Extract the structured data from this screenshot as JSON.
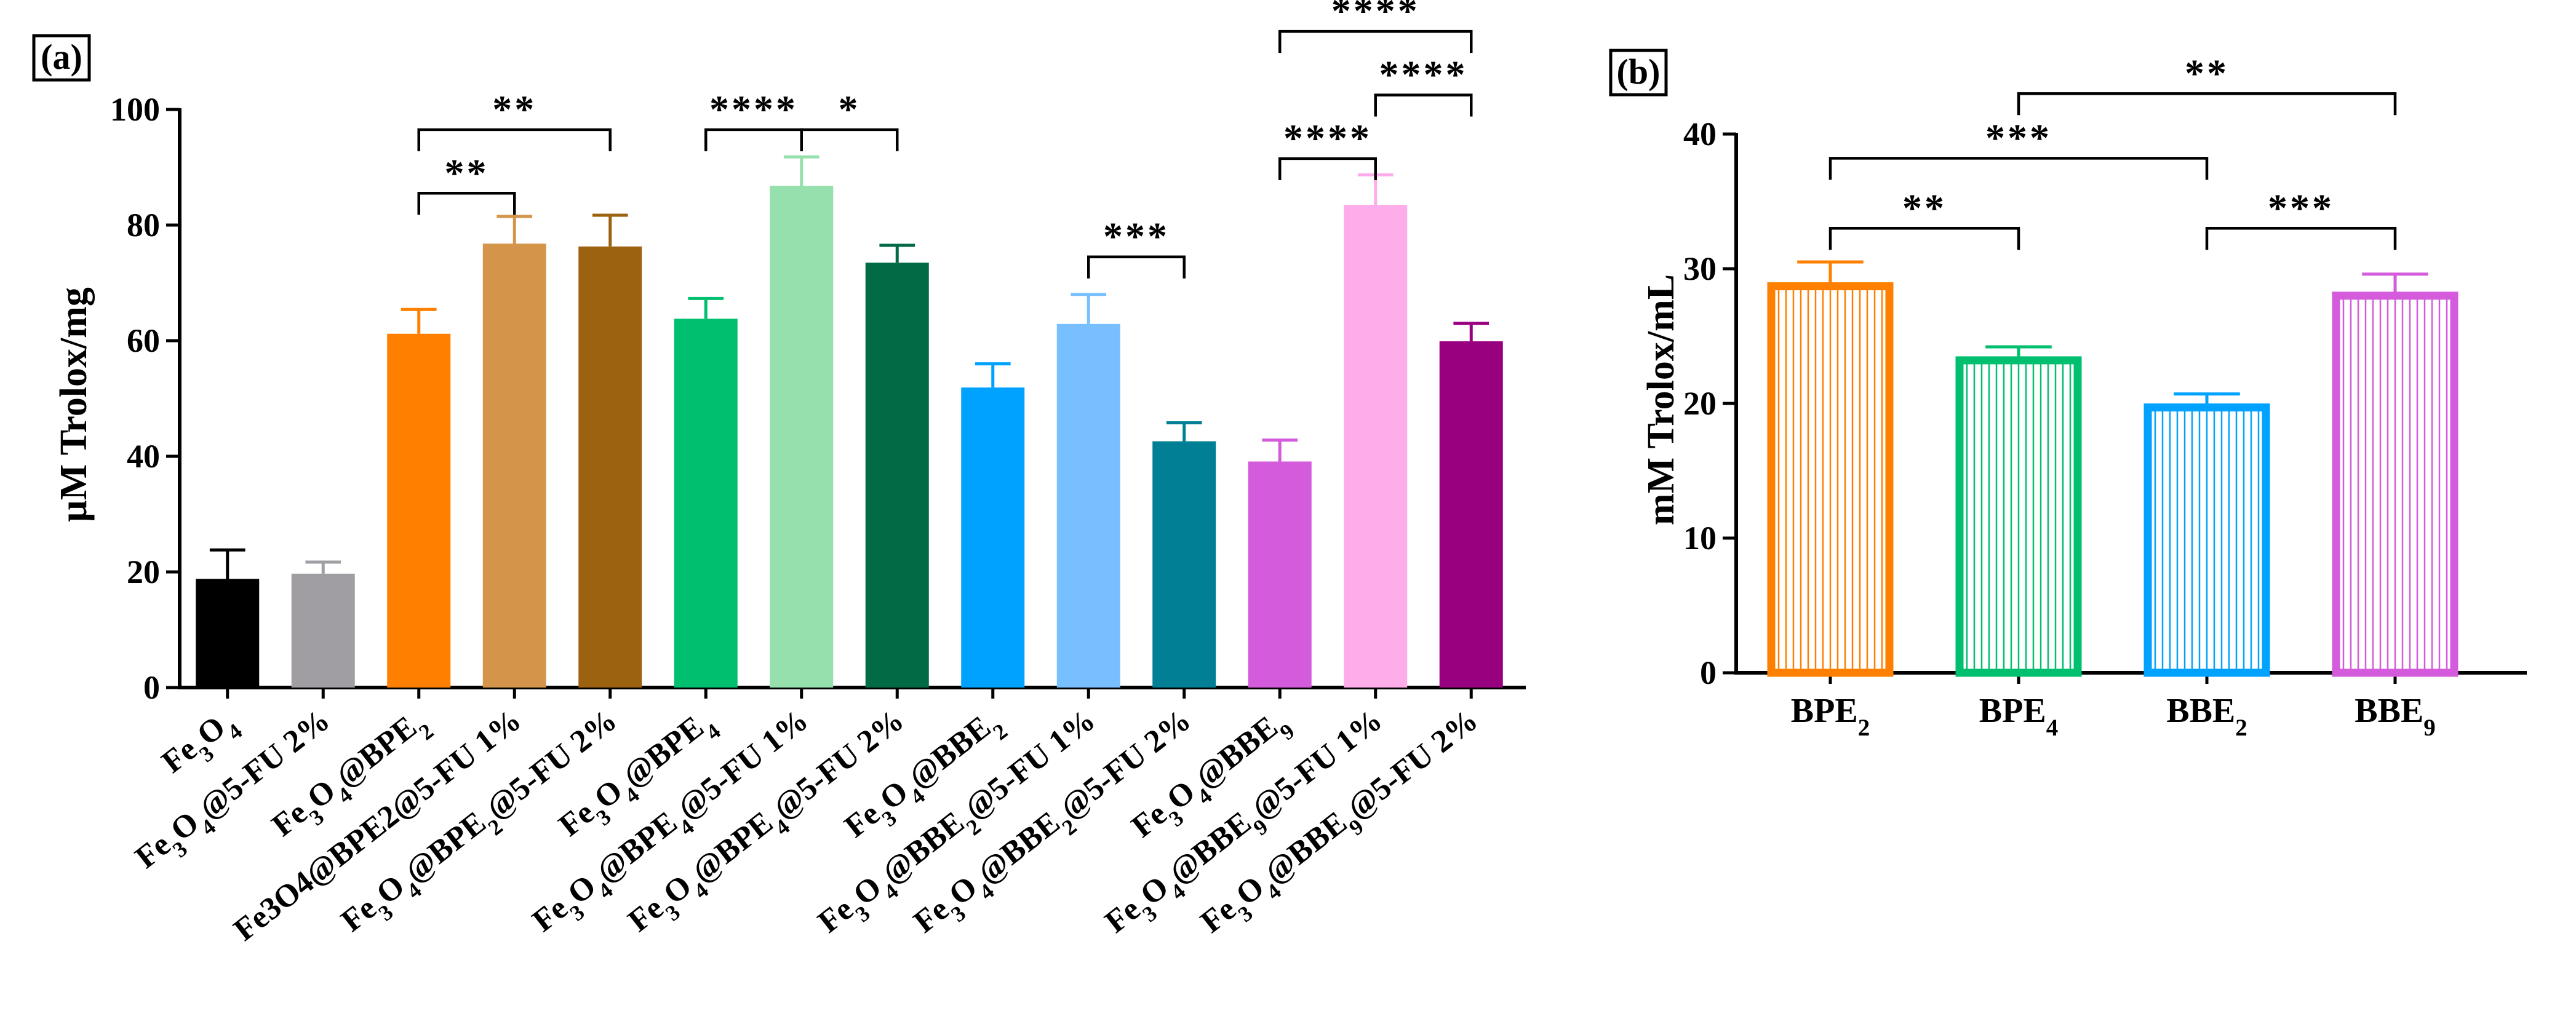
{
  "colors": {
    "fe3o4": "#000000",
    "grey": "#a09ea3",
    "orange": "#ff8000",
    "tan": "#d4954b",
    "brown": "#9c6210",
    "green": "#00bf6f",
    "lightgreen": "#96e0ad",
    "darkgreen": "#006b44",
    "blue": "#00a2ff",
    "lightblue": "#78bfff",
    "teal": "#007f95",
    "magenta": "#d45bdb",
    "pink": "#ffadea",
    "purple": "#98007f"
  },
  "chart_data": [
    {
      "panel": "(a)",
      "type": "bar",
      "ylabel": "µM Trolox/mg",
      "xlabel": "",
      "ylim": [
        0,
        100
      ],
      "yticks": [
        "0",
        "20",
        "40",
        "60",
        "80",
        "100"
      ],
      "yticks_values": [
        0,
        20,
        40,
        60,
        80,
        100
      ],
      "categories": [
        {
          "base": "Fe",
          "parts": [
            [
              "Fe",
              ""
            ],
            [
              "3",
              "sub"
            ],
            [
              "O",
              ""
            ],
            [
              "4",
              "sub"
            ]
          ]
        },
        {
          "parts": [
            [
              "Fe",
              ""
            ],
            [
              "3",
              "sub"
            ],
            [
              "O",
              ""
            ],
            [
              "4",
              "sub"
            ],
            [
              "@5-FU 2%",
              ""
            ]
          ]
        },
        {
          "parts": [
            [
              "Fe",
              ""
            ],
            [
              "3",
              "sub"
            ],
            [
              "O",
              ""
            ],
            [
              "4",
              "sub"
            ],
            [
              "@BPE",
              ""
            ],
            [
              "2",
              "sub"
            ]
          ]
        },
        {
          "parts": [
            [
              "Fe3O4@BPE2@5-FU 1%",
              ""
            ]
          ]
        },
        {
          "parts": [
            [
              "Fe",
              ""
            ],
            [
              "3",
              "sub"
            ],
            [
              "O",
              ""
            ],
            [
              "4",
              "sub"
            ],
            [
              "@BPE",
              ""
            ],
            [
              "2",
              "sub"
            ],
            [
              "@5-FU 2%",
              ""
            ]
          ]
        },
        {
          "parts": [
            [
              "Fe",
              ""
            ],
            [
              "3",
              "sub"
            ],
            [
              "O",
              ""
            ],
            [
              "4",
              "sub"
            ],
            [
              "@BPE",
              ""
            ],
            [
              "4",
              "sub"
            ]
          ]
        },
        {
          "parts": [
            [
              "Fe",
              ""
            ],
            [
              "3",
              "sub"
            ],
            [
              "O",
              ""
            ],
            [
              "4",
              "sub"
            ],
            [
              "@BPE",
              ""
            ],
            [
              "4",
              "sub"
            ],
            [
              "@5-FU 1%",
              ""
            ]
          ]
        },
        {
          "parts": [
            [
              "Fe",
              ""
            ],
            [
              "3",
              "sub"
            ],
            [
              "O",
              ""
            ],
            [
              "4",
              "sub"
            ],
            [
              "@BPE",
              ""
            ],
            [
              "4",
              "sub"
            ],
            [
              "@5-FU 2%",
              ""
            ]
          ]
        },
        {
          "parts": [
            [
              "Fe",
              ""
            ],
            [
              "3",
              "sub"
            ],
            [
              "O",
              ""
            ],
            [
              "4",
              "sub"
            ],
            [
              "@BBE",
              ""
            ],
            [
              "2",
              "sub"
            ]
          ]
        },
        {
          "parts": [
            [
              "Fe",
              ""
            ],
            [
              "3",
              "sub"
            ],
            [
              "O",
              ""
            ],
            [
              "4",
              "sub"
            ],
            [
              "@BBE",
              ""
            ],
            [
              "2",
              "sub"
            ],
            [
              "@5-FU 1%",
              ""
            ]
          ]
        },
        {
          "parts": [
            [
              "Fe",
              ""
            ],
            [
              "3",
              "sub"
            ],
            [
              "O",
              ""
            ],
            [
              "4",
              "sub"
            ],
            [
              "@BBE",
              ""
            ],
            [
              "2",
              "sub"
            ],
            [
              "@5-FU 2%",
              ""
            ]
          ]
        },
        {
          "parts": [
            [
              "Fe",
              ""
            ],
            [
              "3",
              "sub"
            ],
            [
              "O",
              ""
            ],
            [
              "4",
              "sub"
            ],
            [
              "@BBE",
              ""
            ],
            [
              "9",
              "sub"
            ]
          ]
        },
        {
          "parts": [
            [
              "Fe",
              ""
            ],
            [
              "3",
              "sub"
            ],
            [
              "O",
              ""
            ],
            [
              "4",
              "sub"
            ],
            [
              "@BBE",
              ""
            ],
            [
              "9",
              "sub"
            ],
            [
              "@5-FU 1%",
              ""
            ]
          ]
        },
        {
          "parts": [
            [
              "Fe",
              ""
            ],
            [
              "3",
              "sub"
            ],
            [
              "O",
              ""
            ],
            [
              "4",
              "sub"
            ],
            [
              "@BBE",
              ""
            ],
            [
              "9",
              "sub"
            ],
            [
              "@5-FU 2%",
              ""
            ]
          ]
        }
      ],
      "values": [
        18.8,
        19.7,
        61.2,
        76.8,
        76.3,
        63.8,
        86.8,
        73.5,
        51.9,
        62.9,
        42.6,
        39.1,
        83.5,
        59.9
      ],
      "errors": [
        5.0,
        2.0,
        4.2,
        4.7,
        5.4,
        3.5,
        5.0,
        3.0,
        4.1,
        5.1,
        3.2,
        3.7,
        5.2,
        3.1
      ],
      "bar_colors": [
        "fe3o4",
        "grey",
        "orange",
        "tan",
        "brown",
        "green",
        "lightgreen",
        "darkgreen",
        "blue",
        "lightblue",
        "teal",
        "magenta",
        "pink",
        "purple"
      ],
      "significance": [
        {
          "from": 2,
          "to": 3,
          "y": 85.5,
          "label": "**"
        },
        {
          "from": 2,
          "to": 4,
          "y": 96.5,
          "label": "**"
        },
        {
          "from": 5,
          "to": 6,
          "y": 96.5,
          "label": "****"
        },
        {
          "from": 6,
          "to": 7,
          "y": 96.5,
          "label": "*"
        },
        {
          "from": 9,
          "to": 10,
          "y": 74.5,
          "label": "***"
        },
        {
          "from": 11,
          "to": 12,
          "y": 91.5,
          "label": "****"
        },
        {
          "from": 12,
          "to": 13,
          "y": 102.5,
          "label": "****"
        },
        {
          "from": 11,
          "to": 13,
          "y": 113.5,
          "label": "****"
        }
      ]
    },
    {
      "panel": "(b)",
      "type": "bar",
      "ylabel": "mM Trolox/mL",
      "xlabel": "",
      "ylim": [
        0,
        40
      ],
      "yticks": [
        "0",
        "10",
        "20",
        "30",
        "40"
      ],
      "yticks_values": [
        0,
        10,
        20,
        30,
        40
      ],
      "categories": [
        {
          "parts": [
            [
              "BPE",
              ""
            ],
            [
              "2",
              "sub"
            ]
          ]
        },
        {
          "parts": [
            [
              "BPE",
              ""
            ],
            [
              "4",
              "sub"
            ]
          ]
        },
        {
          "parts": [
            [
              "BBE",
              ""
            ],
            [
              "2",
              "sub"
            ]
          ]
        },
        {
          "parts": [
            [
              "BBE",
              ""
            ],
            [
              "9",
              "sub"
            ]
          ]
        }
      ],
      "values": [
        28.7,
        23.2,
        19.7,
        28.0
      ],
      "errors": [
        1.8,
        1.0,
        1.0,
        1.6
      ],
      "bar_colors": [
        "orange",
        "green",
        "blue",
        "magenta"
      ],
      "significance": [
        {
          "from": 0,
          "to": 1,
          "y": 33.0,
          "label": "**"
        },
        {
          "from": 2,
          "to": 3,
          "y": 33.0,
          "label": "***"
        },
        {
          "from": 0,
          "to": 2,
          "y": 38.2,
          "label": "***"
        },
        {
          "from": 1,
          "to": 3,
          "y": 43.0,
          "label": "**"
        }
      ]
    }
  ]
}
